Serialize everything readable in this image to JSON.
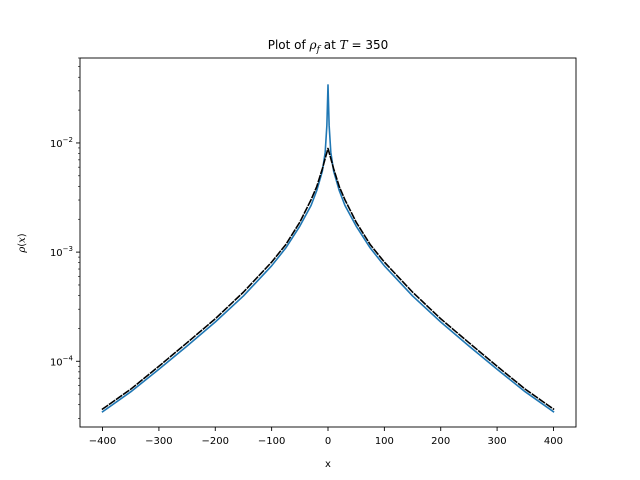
{
  "chart_data": {
    "type": "line",
    "title_parts": [
      "Plot of ",
      "ρ",
      "f",
      " at ",
      "T",
      " = 350"
    ],
    "xlabel": "x",
    "ylabel_parts": [
      "ρ",
      "(",
      "x",
      ")"
    ],
    "x_scale": "linear",
    "y_scale": "log",
    "xlim": [
      -440,
      440
    ],
    "ylim": [
      2.5e-05,
      0.06
    ],
    "xticks": [
      -400,
      -300,
      -200,
      -100,
      0,
      100,
      200,
      300,
      400
    ],
    "xtick_labels": [
      "−400",
      "−300",
      "−200",
      "−100",
      "0",
      "100",
      "200",
      "300",
      "400"
    ],
    "yticks": [
      0.0001,
      0.001,
      0.01
    ],
    "ytick_labels": [
      {
        "base": "10",
        "exp": "−4"
      },
      {
        "base": "10",
        "exp": "−3"
      },
      {
        "base": "10",
        "exp": "−2"
      }
    ],
    "grid": false,
    "legend": "none",
    "series": [
      {
        "style": "solid",
        "color": "#1f77b4",
        "x": [
          -400,
          -350,
          -300,
          -250,
          -200,
          -150,
          -100,
          -75,
          -50,
          -30,
          -20,
          -10,
          -5,
          -2,
          0,
          2,
          5,
          10,
          20,
          30,
          50,
          75,
          100,
          150,
          200,
          250,
          300,
          350,
          400
        ],
        "y": [
          3.45e-05,
          5.25e-05,
          8.45e-05,
          0.000138,
          0.000229,
          0.000397,
          0.000749,
          0.00109,
          0.00173,
          0.00268,
          0.00366,
          0.00552,
          0.0082,
          0.0145,
          0.034,
          0.0145,
          0.0082,
          0.00552,
          0.00366,
          0.00268,
          0.00173,
          0.00109,
          0.000749,
          0.000397,
          0.000229,
          0.000138,
          8.45e-05,
          5.25e-05,
          3.45e-05
        ]
      },
      {
        "style": "dashed",
        "color": "#000000",
        "x": [
          -400,
          -350,
          -300,
          -250,
          -200,
          -150,
          -100,
          -75,
          -50,
          -30,
          -20,
          -10,
          -5,
          0,
          5,
          10,
          20,
          30,
          50,
          75,
          100,
          150,
          200,
          250,
          300,
          350,
          400
        ],
        "y": [
          3.65e-05,
          5.55e-05,
          9e-05,
          0.000148,
          0.000245,
          0.00043,
          0.00081,
          0.00117,
          0.00188,
          0.00302,
          0.00398,
          0.0058,
          0.0072,
          0.0089,
          0.0072,
          0.0058,
          0.00398,
          0.00302,
          0.00188,
          0.00117,
          0.00081,
          0.00043,
          0.000245,
          0.000148,
          9e-05,
          5.55e-05,
          3.65e-05
        ]
      }
    ]
  }
}
